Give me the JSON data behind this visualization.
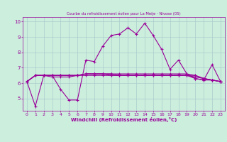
{
  "title": "Courbe du refroidissement éolien pour La Meije - Nivose (05)",
  "xlabel": "Windchill (Refroidissement éolien,°C)",
  "bg_color": "#cceedd",
  "line_color": "#990099",
  "grid_color": "#aacccc",
  "x_values": [
    0,
    1,
    2,
    3,
    4,
    5,
    6,
    7,
    8,
    9,
    10,
    11,
    12,
    13,
    14,
    15,
    16,
    17,
    18,
    19,
    20,
    21,
    22,
    23
  ],
  "series": [
    [
      6.1,
      4.5,
      6.5,
      6.5,
      5.6,
      4.9,
      4.9,
      7.5,
      7.4,
      8.4,
      9.1,
      9.2,
      9.6,
      9.2,
      9.9,
      9.1,
      8.2,
      6.9,
      7.5,
      6.6,
      6.3,
      6.2,
      7.2,
      6.1
    ],
    [
      6.1,
      6.5,
      6.5,
      6.5,
      6.5,
      6.5,
      6.5,
      6.5,
      6.5,
      6.5,
      6.5,
      6.5,
      6.5,
      6.5,
      6.5,
      6.5,
      6.5,
      6.5,
      6.5,
      6.5,
      6.3,
      6.2,
      6.2,
      6.1
    ],
    [
      6.1,
      6.5,
      6.5,
      6.5,
      6.5,
      6.5,
      6.5,
      6.6,
      6.6,
      6.6,
      6.6,
      6.6,
      6.6,
      6.6,
      6.6,
      6.6,
      6.6,
      6.6,
      6.6,
      6.6,
      6.5,
      6.3,
      6.2,
      6.1
    ],
    [
      6.1,
      6.5,
      6.5,
      6.4,
      6.4,
      6.4,
      6.5,
      6.6,
      6.6,
      6.6,
      6.6,
      6.5,
      6.5,
      6.5,
      6.5,
      6.5,
      6.5,
      6.5,
      6.5,
      6.5,
      6.4,
      6.3,
      6.2,
      6.1
    ],
    [
      6.1,
      6.5,
      6.5,
      6.5,
      6.5,
      6.5,
      6.5,
      6.6,
      6.6,
      6.6,
      6.5,
      6.5,
      6.5,
      6.5,
      6.5,
      6.5,
      6.5,
      6.5,
      6.5,
      6.5,
      6.5,
      6.3,
      6.2,
      6.1
    ]
  ],
  "ylim": [
    4.2,
    10.3
  ],
  "yticks": [
    5,
    6,
    7,
    8,
    9,
    10
  ],
  "xticks": [
    0,
    1,
    2,
    3,
    4,
    5,
    6,
    7,
    8,
    9,
    10,
    11,
    12,
    13,
    14,
    15,
    16,
    17,
    18,
    19,
    20,
    21,
    22,
    23
  ],
  "marker": "+",
  "markersize": 3.5,
  "linewidth": 0.8
}
